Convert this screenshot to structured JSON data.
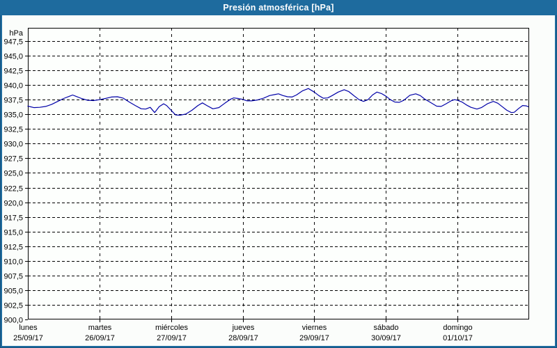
{
  "title": "Presión atmosférica [hPa]",
  "colors": {
    "titlebar": "#1e6b9e",
    "border": "#1e6b9e",
    "edge": "#16537e",
    "title_text": "#ffffff",
    "canvas_bg": "#fbfdfb",
    "plot_bg": "#fdfffd",
    "grid": "#000000",
    "line": "#0000a8"
  },
  "chart_data": {
    "type": "line",
    "title": "Presión atmosférica [hPa]",
    "y_unit": "hPa",
    "grid": "dashed",
    "legend": "none",
    "y_axis": {
      "min": 900.0,
      "max": 947.5,
      "grid_step": 2.5,
      "tick_labels": [
        "947,5",
        "945,0",
        "942,5",
        "940,0",
        "937,5",
        "935,0",
        "932,5",
        "930,0",
        "927,5",
        "925,0",
        "922,5",
        "920,0",
        "917,5",
        "915,0",
        "912,5",
        "910,0",
        "907,5",
        "905,0",
        "902,5",
        "900,0"
      ]
    },
    "x_axis": {
      "hours_total": 168,
      "grid": "dashed-daily",
      "days": [
        {
          "name": "lunes",
          "date": "25/09/17"
        },
        {
          "name": "martes",
          "date": "26/09/17"
        },
        {
          "name": "miércoles",
          "date": "27/09/17"
        },
        {
          "name": "jueves",
          "date": "28/09/17"
        },
        {
          "name": "viernes",
          "date": "29/09/17"
        },
        {
          "name": "sábado",
          "date": "30/09/17"
        },
        {
          "name": "domingo",
          "date": "01/10/17"
        }
      ]
    },
    "series": [
      {
        "name": "Presión atmosférica",
        "unit": "hPa",
        "color": "#0000a8",
        "points_hours_hpa": [
          [
            0,
            936.4
          ],
          [
            2,
            936.15
          ],
          [
            4,
            936.2
          ],
          [
            6,
            936.35
          ],
          [
            8,
            936.7
          ],
          [
            10,
            937.2
          ],
          [
            12,
            937.7
          ],
          [
            14,
            938.1
          ],
          [
            15,
            938.3
          ],
          [
            16,
            938.1
          ],
          [
            18,
            937.7
          ],
          [
            20,
            937.4
          ],
          [
            22,
            937.35
          ],
          [
            24,
            937.5
          ],
          [
            26,
            937.7
          ],
          [
            28,
            937.95
          ],
          [
            30,
            938.0
          ],
          [
            32,
            937.75
          ],
          [
            34,
            937.1
          ],
          [
            36,
            936.5
          ],
          [
            38,
            935.95
          ],
          [
            39.5,
            935.9
          ],
          [
            41,
            936.2
          ],
          [
            42.5,
            935.3
          ],
          [
            44,
            936.3
          ],
          [
            45.5,
            936.8
          ],
          [
            46.5,
            936.5
          ],
          [
            48,
            935.7
          ],
          [
            49.5,
            934.9
          ],
          [
            51,
            934.85
          ],
          [
            53,
            935.05
          ],
          [
            55,
            935.7
          ],
          [
            57,
            936.5
          ],
          [
            58.5,
            936.95
          ],
          [
            60,
            936.5
          ],
          [
            62,
            935.95
          ],
          [
            64,
            936.15
          ],
          [
            66,
            936.9
          ],
          [
            68,
            937.6
          ],
          [
            69,
            937.8
          ],
          [
            70.5,
            937.7
          ],
          [
            72,
            937.55
          ],
          [
            73.5,
            937.3
          ],
          [
            75,
            937.3
          ],
          [
            77,
            937.45
          ],
          [
            79,
            937.75
          ],
          [
            81,
            938.2
          ],
          [
            83,
            938.4
          ],
          [
            84,
            938.5
          ],
          [
            85.5,
            938.2
          ],
          [
            87,
            938.0
          ],
          [
            88.5,
            937.95
          ],
          [
            90,
            938.3
          ],
          [
            92,
            939.0
          ],
          [
            94,
            939.4
          ],
          [
            96,
            938.8
          ],
          [
            97.5,
            938.2
          ],
          [
            99,
            937.75
          ],
          [
            100.5,
            937.8
          ],
          [
            102,
            938.2
          ],
          [
            104,
            938.8
          ],
          [
            106,
            939.2
          ],
          [
            107.5,
            938.9
          ],
          [
            109,
            938.3
          ],
          [
            111,
            937.5
          ],
          [
            112.5,
            937.2
          ],
          [
            114,
            937.5
          ],
          [
            115.5,
            938.3
          ],
          [
            117,
            938.8
          ],
          [
            118.5,
            938.55
          ],
          [
            120,
            938.1
          ],
          [
            121.5,
            937.5
          ],
          [
            123,
            937.1
          ],
          [
            124.5,
            937.05
          ],
          [
            126,
            937.4
          ],
          [
            128,
            938.25
          ],
          [
            130,
            938.5
          ],
          [
            131.5,
            938.2
          ],
          [
            133,
            937.6
          ],
          [
            135,
            937.0
          ],
          [
            137,
            936.4
          ],
          [
            138.5,
            936.35
          ],
          [
            140,
            936.75
          ],
          [
            142,
            937.35
          ],
          [
            143,
            937.5
          ],
          [
            144,
            937.4
          ],
          [
            145.5,
            937.1
          ],
          [
            147,
            936.6
          ],
          [
            148.5,
            936.2
          ],
          [
            150.5,
            935.9
          ],
          [
            152,
            936.15
          ],
          [
            154,
            936.8
          ],
          [
            156,
            937.2
          ],
          [
            157.5,
            936.9
          ],
          [
            159,
            936.3
          ],
          [
            160.5,
            935.7
          ],
          [
            162,
            935.3
          ],
          [
            163,
            935.35
          ],
          [
            164.5,
            936.0
          ],
          [
            165.8,
            936.5
          ],
          [
            167,
            936.45
          ],
          [
            167.7,
            936.3
          ]
        ]
      }
    ]
  }
}
